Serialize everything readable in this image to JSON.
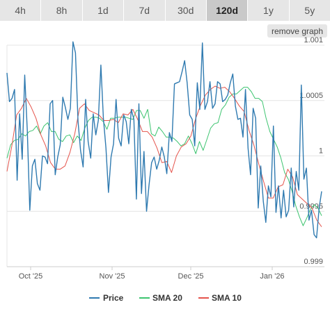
{
  "range_tabs": [
    {
      "label": "4h"
    },
    {
      "label": "8h"
    },
    {
      "label": "1d"
    },
    {
      "label": "7d"
    },
    {
      "label": "30d"
    },
    {
      "label": "120d",
      "active": true
    },
    {
      "label": "1y"
    },
    {
      "label": "5y"
    }
  ],
  "remove_graph_label": "remove graph",
  "chart_data": {
    "type": "line",
    "x_ticks": [
      "Oct '25",
      "Nov '25",
      "Dec '25",
      "Jan '26"
    ],
    "y_ticks": [
      "0.999",
      "0.9995",
      "1",
      "1.0005",
      "1.001"
    ],
    "ylim": [
      0.999,
      1.001
    ],
    "grid": true,
    "legend_position": "bottom",
    "series": [
      {
        "name": "Price",
        "color": "#2f7ab0",
        "values": [
          1.00075,
          1.00049,
          1.00052,
          1.0006,
          0.99978,
          1.00038,
          0.99997,
          1.00073,
          1.00023,
          0.99951,
          0.99991,
          0.99997,
          0.99975,
          0.99969,
          1.0,
          0.99999,
          0.99993,
          1.00047,
          1.0005,
          0.99983,
          0.99999,
          1.0001,
          1.00053,
          1.00044,
          1.00033,
          1.00043,
          1.00103,
          1.00093,
          1.00031,
          1.00005,
          0.9999,
          1.00051,
          1.00013,
          0.99998,
          1.00038,
          1.00019,
          1.00032,
          1.00082,
          1.00034,
          1.00007,
          0.99967,
          0.99999,
          1.00011,
          1.00051,
          1.00016,
          1.00009,
          1.00037,
          1.00031,
          1.00011,
          1.00042,
          1.00033,
          0.99961,
          1.00047,
          0.99966,
          1.00004,
          0.9995,
          0.99974,
          0.99994,
          0.99999,
          0.99988,
          0.99996,
          1.00008,
          0.99999,
          0.99984,
          1.00021,
          1.00013,
          1.00065,
          1.00066,
          1.00067,
          1.00076,
          1.00086,
          1.00066,
          1.00037,
          1.00033,
          1.00009,
          1.00066,
          1.00042,
          1.00102,
          1.00042,
          1.00049,
          1.00067,
          1.00043,
          1.00047,
          1.00067,
          1.00065,
          1.00049,
          1.00051,
          1.00055,
          1.00066,
          1.00074,
          1.00045,
          1.00033,
          1.00034,
          1.00017,
          1.0006,
          1.00007,
          0.99983,
          1.00043,
          1.00034,
          0.99953,
          0.99991,
          0.99959,
          0.9994,
          0.99973,
          0.99963,
          1.00027,
          0.99949,
          0.99973,
          0.99944,
          0.99969,
          0.99945,
          0.99951,
          0.99989,
          0.99954,
          0.99986,
          0.99969,
          1.00064,
          0.99979,
          0.99989,
          0.99942,
          0.99951,
          0.99929,
          0.99926,
          0.99953,
          0.99968
        ]
      },
      {
        "name": "SMA 20",
        "color": "#3cc46f",
        "values": [
          0.99998,
          1.0001,
          1.00014,
          1.00015,
          1.0002,
          1.00018,
          1.00022,
          1.00023,
          1.00027,
          1.0002,
          1.00027,
          1.0003,
          1.00022,
          1.00022,
          1.00015,
          1.00013,
          1.00018,
          1.00019,
          1.00012,
          1.00018,
          1.00014,
          1.00025,
          1.00032,
          1.00035,
          1.00035,
          1.00034,
          1.00031,
          1.00024,
          1.00034,
          1.00034,
          1.00035,
          1.00035,
          1.00035,
          1.00034,
          1.00033,
          1.00041,
          1.00041,
          1.00034,
          1.00042,
          1.0002,
          1.00018,
          1.00026,
          1.00022,
          1.00017,
          1.00017,
          1.00016,
          1.00013,
          1.00009,
          1.00011,
          1.00018,
          1.00011,
          1.00002,
          1.00013,
          1.00005,
          1.00015,
          1.00025,
          1.00029,
          1.0003,
          1.00042,
          1.00046,
          1.00053,
          1.00056,
          1.00056,
          1.00059,
          1.00062,
          1.00062,
          1.00058,
          1.00052,
          1.00052,
          1.00049,
          1.00034,
          1.00022,
          1.00015,
          1.00008,
          0.99998,
          0.99985,
          0.99979,
          0.99968,
          0.99955,
          0.99945,
          0.99937,
          0.99944,
          0.99952,
          0.99956,
          0.99953,
          0.99946
        ]
      },
      {
        "name": "SMA 10",
        "color": "#e5534b",
        "values": [
          0.99986,
          1.00009,
          1.00037,
          1.00043,
          1.00052,
          1.00044,
          1.00034,
          1.00019,
          1.00009,
          0.99994,
          0.99988,
          0.99988,
          0.99991,
          1.00003,
          1.0002,
          1.00043,
          1.00047,
          1.00041,
          1.00039,
          1.00037,
          1.00032,
          1.00032,
          1.00033,
          1.0003,
          1.00038,
          1.00037,
          1.00042,
          1.00033,
          1.00022,
          1.00022,
          1.00017,
          1.00007,
          0.99994,
          0.99995,
          0.99985,
          1.0,
          1.00008,
          1.00011,
          1.00018,
          1.00034,
          1.00046,
          1.00055,
          1.0006,
          1.00063,
          1.00061,
          1.00062,
          1.00058,
          1.00052,
          1.00045,
          1.0004,
          1.00023,
          1.0001,
          0.99993,
          0.99977,
          0.99962,
          0.99962,
          0.99972,
          0.99974,
          0.99988,
          0.99981,
          0.99965,
          0.99961,
          0.99957,
          0.99953,
          0.99942,
          0.99936
        ]
      }
    ]
  }
}
